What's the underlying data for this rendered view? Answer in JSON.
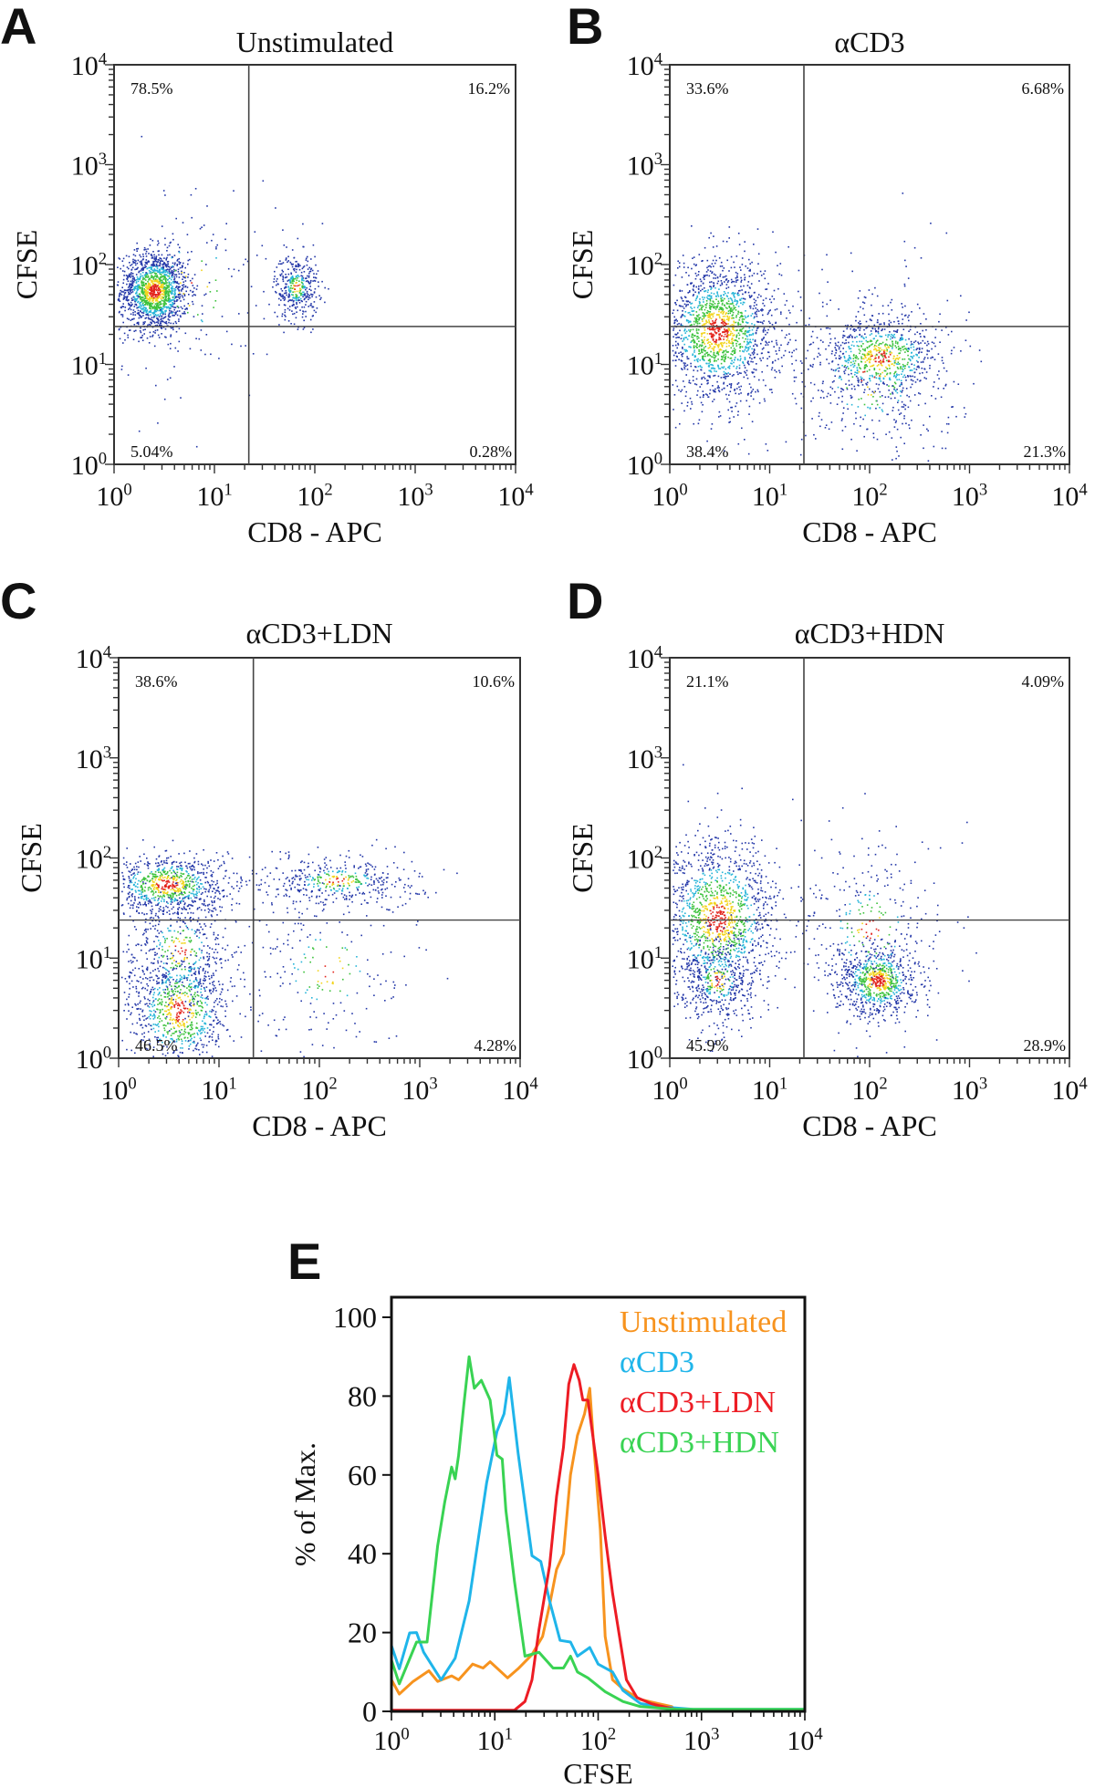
{
  "chart_data": [
    {
      "panel": "A",
      "type": "scatter",
      "title": "Unstimulated",
      "xlabel": "CD8 - APC",
      "ylabel": "CFSE",
      "xscale": "log",
      "yscale": "log",
      "xlim": [
        1,
        10000
      ],
      "ylim": [
        1,
        10000
      ],
      "tick_exponents": [
        0,
        1,
        2,
        3,
        4
      ],
      "tick_base": "10",
      "gate": {
        "x": 22,
        "y": 24
      },
      "quadrants": {
        "upper_left": "78.5%",
        "upper_right": "16.2%",
        "lower_left": "5.04%",
        "lower_right": "0.28%"
      },
      "populations": [
        {
          "x": 2.5,
          "y": 55,
          "spread_x_decades": 0.17,
          "spread_y_decades": 0.2,
          "events": 1500
        },
        {
          "x": 65,
          "y": 60,
          "spread_x_decades": 0.11,
          "spread_y_decades": 0.17,
          "events": 380
        },
        {
          "x": 6,
          "y": 60,
          "spread_x_decades": 0.45,
          "spread_y_decades": 0.55,
          "events": 150
        }
      ]
    },
    {
      "panel": "B",
      "type": "scatter",
      "title": "αCD3",
      "xlabel": "CD8 - APC",
      "ylabel": "CFSE",
      "xscale": "log",
      "yscale": "log",
      "xlim": [
        1,
        10000
      ],
      "ylim": [
        1,
        10000
      ],
      "tick_exponents": [
        0,
        1,
        2,
        3,
        4
      ],
      "tick_base": "10",
      "gate": {
        "x": 22,
        "y": 24
      },
      "quadrants": {
        "upper_left": "33.6%",
        "upper_right": "6.68%",
        "lower_left": "38.4%",
        "lower_right": "21.3%"
      },
      "populations": [
        {
          "x": 3,
          "y": 22,
          "spread_x_decades": 0.3,
          "spread_y_decades": 0.35,
          "events": 1700
        },
        {
          "x": 130,
          "y": 12,
          "spread_x_decades": 0.3,
          "spread_y_decades": 0.2,
          "events": 700
        },
        {
          "x": 100,
          "y": 8,
          "spread_x_decades": 0.45,
          "spread_y_decades": 0.55,
          "events": 400
        }
      ]
    },
    {
      "panel": "C",
      "type": "scatter",
      "title": "αCD3+LDN",
      "xlabel": "CD8 - APC",
      "ylabel": "CFSE",
      "xscale": "log",
      "yscale": "log",
      "xlim": [
        1,
        10000
      ],
      "ylim": [
        1,
        10000
      ],
      "tick_exponents": [
        0,
        1,
        2,
        3,
        4
      ],
      "tick_base": "10",
      "gate": {
        "x": 22,
        "y": 24
      },
      "quadrants": {
        "upper_left": "38.6%",
        "upper_right": "10.6%",
        "lower_left": "46.5%",
        "lower_right": "4.28%"
      },
      "populations": [
        {
          "x": 3,
          "y": 55,
          "spread_x_decades": 0.3,
          "spread_y_decades": 0.15,
          "events": 800
        },
        {
          "x": 4,
          "y": 3,
          "spread_x_decades": 0.25,
          "spread_y_decades": 0.3,
          "events": 800
        },
        {
          "x": 4,
          "y": 12,
          "spread_x_decades": 0.3,
          "spread_y_decades": 0.35,
          "events": 500
        },
        {
          "x": 150,
          "y": 60,
          "spread_x_decades": 0.42,
          "spread_y_decades": 0.13,
          "events": 420
        },
        {
          "x": 120,
          "y": 8,
          "spread_x_decades": 0.45,
          "spread_y_decades": 0.45,
          "events": 200
        }
      ]
    },
    {
      "panel": "D",
      "type": "scatter",
      "title": "αCD3+HDN",
      "xlabel": "CD8 - APC",
      "ylabel": "CFSE",
      "xscale": "log",
      "yscale": "log",
      "xlim": [
        1,
        10000
      ],
      "ylim": [
        1,
        10000
      ],
      "tick_exponents": [
        0,
        1,
        2,
        3,
        4
      ],
      "tick_base": "10",
      "gate": {
        "x": 22,
        "y": 24
      },
      "quadrants": {
        "upper_left": "21.1%",
        "upper_right": "4.09%",
        "lower_left": "45.9%",
        "lower_right": "28.9%"
      },
      "populations": [
        {
          "x": 3,
          "y": 25,
          "spread_x_decades": 0.3,
          "spread_y_decades": 0.4,
          "events": 1400
        },
        {
          "x": 3,
          "y": 6,
          "spread_x_decades": 0.2,
          "spread_y_decades": 0.25,
          "events": 400
        },
        {
          "x": 120,
          "y": 6,
          "spread_x_decades": 0.2,
          "spread_y_decades": 0.18,
          "events": 800
        },
        {
          "x": 100,
          "y": 20,
          "spread_x_decades": 0.4,
          "spread_y_decades": 0.45,
          "events": 300
        }
      ]
    },
    {
      "panel": "E",
      "type": "line",
      "xlabel": "CFSE",
      "ylabel": "% of Max.",
      "xscale": "log",
      "xlim": [
        1,
        10000
      ],
      "ylim": [
        0,
        100
      ],
      "x_tick_exponents": [
        0,
        1,
        2,
        3,
        4
      ],
      "tick_base": "10",
      "y_ticks": [
        0,
        20,
        40,
        60,
        80,
        100
      ],
      "legend": "top-right",
      "series": [
        {
          "name": "Unstimulated",
          "color": "#f7931e",
          "points": [
            [
              1,
              8
            ],
            [
              1.19,
              4.4
            ],
            [
              1.62,
              7.6
            ],
            [
              2.3,
              10.3
            ],
            [
              2.8,
              7.6
            ],
            [
              3.82,
              9
            ],
            [
              4.47,
              8
            ],
            [
              6.1,
              12
            ],
            [
              7.7,
              11
            ],
            [
              9,
              12.6
            ],
            [
              13.3,
              8.5
            ],
            [
              16.8,
              10.8
            ],
            [
              22.9,
              14.4
            ],
            [
              29,
              19
            ],
            [
              33.9,
              27
            ],
            [
              39.6,
              36
            ],
            [
              46.2,
              40
            ],
            [
              54,
              60
            ],
            [
              63,
              70
            ],
            [
              73.8,
              75.5
            ],
            [
              83,
              82
            ],
            [
              89.7,
              69
            ],
            [
              105,
              46
            ],
            [
              117,
              19
            ],
            [
              138,
              8
            ],
            [
              174,
              5.7
            ],
            [
              257,
              3
            ],
            [
              380,
              2
            ],
            [
              518,
              1.2
            ],
            [
              540,
              0
            ]
          ]
        },
        {
          "name": "αCD3",
          "color": "#1fb5ea",
          "points": [
            [
              1,
              16.7
            ],
            [
              1.19,
              10.8
            ],
            [
              1.5,
              19.9
            ],
            [
              1.75,
              20
            ],
            [
              2.05,
              15
            ],
            [
              3.02,
              8
            ],
            [
              4.13,
              13.5
            ],
            [
              5.64,
              28
            ],
            [
              7.13,
              46
            ],
            [
              8.33,
              58
            ],
            [
              10.5,
              71
            ],
            [
              12.3,
              75.5
            ],
            [
              13.8,
              84.7
            ],
            [
              16.8,
              65.5
            ],
            [
              22.9,
              39.5
            ],
            [
              27.9,
              38
            ],
            [
              33.9,
              28
            ],
            [
              42.8,
              18
            ],
            [
              54,
              17.6
            ],
            [
              63,
              14
            ],
            [
              83,
              16.2
            ],
            [
              100,
              12
            ],
            [
              138,
              10
            ],
            [
              174,
              5.3
            ],
            [
              257,
              2
            ],
            [
              380,
              1.2
            ],
            [
              830,
              0.5
            ],
            [
              10000,
              0.5
            ]
          ]
        },
        {
          "name": "αCD3+LDN",
          "color": "#ed1c24",
          "points": [
            [
              1,
              0.3
            ],
            [
              15.5,
              0.3
            ],
            [
              19.6,
              2.5
            ],
            [
              22.9,
              8
            ],
            [
              26.8,
              20.8
            ],
            [
              33.9,
              37
            ],
            [
              39.6,
              54.5
            ],
            [
              46.2,
              67
            ],
            [
              52,
              83
            ],
            [
              58.4,
              88
            ],
            [
              65.6,
              84
            ],
            [
              71,
              79
            ],
            [
              79.6,
              79
            ],
            [
              89.7,
              69
            ],
            [
              100,
              60
            ],
            [
              117,
              44.5
            ],
            [
              138,
              30
            ],
            [
              161,
              19
            ],
            [
              188,
              8
            ],
            [
              238,
              3.5
            ],
            [
              323,
              2
            ],
            [
              380,
              1.5
            ],
            [
              562,
              0.5
            ]
          ]
        },
        {
          "name": "αCD3+HDN",
          "color": "#39d353",
          "points": [
            [
              1,
              13
            ],
            [
              1.19,
              7
            ],
            [
              1.75,
              17.6
            ],
            [
              2.21,
              17.6
            ],
            [
              2.8,
              42
            ],
            [
              3.27,
              53
            ],
            [
              3.82,
              62
            ],
            [
              4.13,
              59
            ],
            [
              4.47,
              65
            ],
            [
              5.02,
              78
            ],
            [
              5.64,
              90
            ],
            [
              6.34,
              82
            ],
            [
              7.41,
              84
            ],
            [
              9,
              79
            ],
            [
              10.5,
              65
            ],
            [
              11.8,
              64
            ],
            [
              12.8,
              51
            ],
            [
              15.5,
              33
            ],
            [
              19.6,
              14
            ],
            [
              26.8,
              15
            ],
            [
              36.6,
              11
            ],
            [
              46.2,
              11
            ],
            [
              54,
              14
            ],
            [
              63,
              10
            ],
            [
              79.6,
              8.5
            ],
            [
              117,
              5
            ],
            [
              174,
              2.5
            ],
            [
              257,
              1.2
            ],
            [
              562,
              0.5
            ],
            [
              10000,
              0.5
            ]
          ]
        }
      ]
    }
  ]
}
